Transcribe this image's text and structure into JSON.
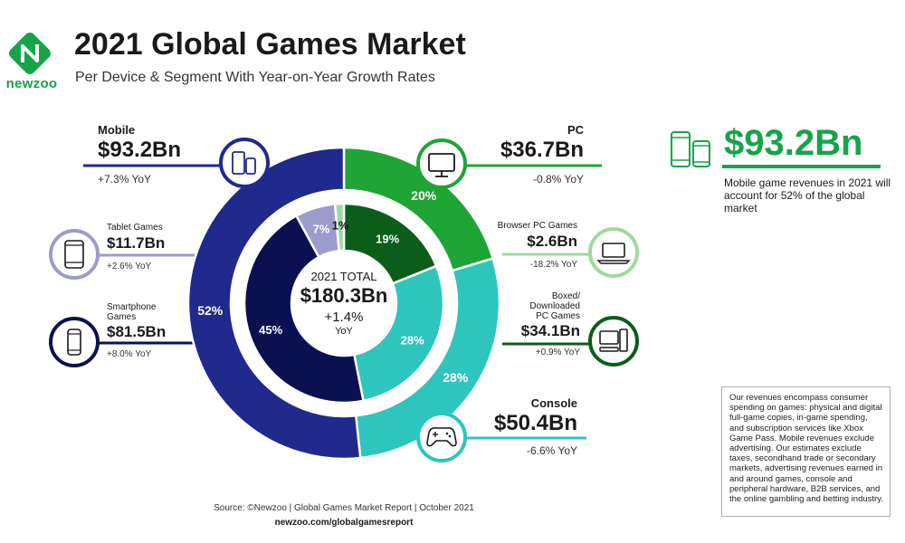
{
  "brand": {
    "name": "newzoo",
    "color": "#16a34a"
  },
  "header": {
    "title": "2021 Global Games Market",
    "subtitle": "Per Device & Segment With Year-on-Year Growth Rates"
  },
  "colors": {
    "mobile": "#1f2a8c",
    "tablet": "#9c9ccc",
    "smartphone": "#0b1050",
    "pc": "#1fa535",
    "browser_pc": "#a0d9a0",
    "boxed_pc": "#0b5e1a",
    "console": "#2ec5bd",
    "divider": "#ffffff"
  },
  "chart_data": {
    "type": "pie",
    "total": {
      "label": "2021 TOTAL",
      "value": "$180.3Bn",
      "growth": "+1.4%",
      "growth_unit": "YoY"
    },
    "outer_ring": [
      {
        "name": "Mobile",
        "revenue_bn": 93.2,
        "label": "52%"
      },
      {
        "name": "PC",
        "revenue_bn": 36.7,
        "label": "20%"
      },
      {
        "name": "Console",
        "revenue_bn": 50.4,
        "label": "28%"
      }
    ],
    "inner_ring": [
      {
        "name": "Smartphone Games",
        "revenue_bn": 81.5,
        "label": "45%"
      },
      {
        "name": "Tablet Games",
        "revenue_bn": 11.7,
        "label": "7%"
      },
      {
        "name": "Browser PC Games",
        "revenue_bn": 2.6,
        "label": "1%"
      },
      {
        "name": "Boxed/ Downloaded PC Games",
        "revenue_bn": 34.1,
        "label": "19%"
      },
      {
        "name": "Console",
        "revenue_bn": 50.4,
        "label": "28%"
      }
    ]
  },
  "segments": {
    "mobile": {
      "label": "Mobile",
      "value": "$93.2Bn",
      "yoy": "+7.3% YoY",
      "icon": "mobile-devices-icon"
    },
    "tablet": {
      "label": "Tablet Games",
      "value": "$11.7Bn",
      "yoy": "+2.6% YoY",
      "icon": "tablet-icon"
    },
    "smartphone": {
      "label1": "Smartphone",
      "label2": "Games",
      "value": "$81.5Bn",
      "yoy": "+8.0% YoY",
      "icon": "smartphone-icon"
    },
    "pc": {
      "label": "PC",
      "value": "$36.7Bn",
      "yoy": "-0.8% YoY",
      "icon": "monitor-icon"
    },
    "browser_pc": {
      "label": "Browser PC Games",
      "value": "$2.6Bn",
      "yoy": "-18.2% YoY",
      "icon": "laptop-icon"
    },
    "boxed_pc": {
      "label1": "Boxed/",
      "label2": "Downloaded",
      "label3": "PC Games",
      "value": "$34.1Bn",
      "yoy": "+0.9% YoY",
      "icon": "desktop-tower-icon"
    },
    "console": {
      "label": "Console",
      "value": "$50.4Bn",
      "yoy": "-6.6% YoY",
      "icon": "gamepad-icon"
    }
  },
  "highlight": {
    "value": "$93.2Bn",
    "text": "Mobile game revenues in 2021 will account for 52% of the global market",
    "icon": "mobile-devices-icon"
  },
  "note": "Our revenues encompass consumer spending on games: physical and digital full-game copies, in-game spending, and subscription services like Xbox Game Pass. Mobile revenues exclude advertising. Our estimates exclude taxes, secondhand trade or secondary markets, advertising revenues earned in and around games, console and peripheral hardware, B2B services, and the online gambling and betting industry.",
  "footer": {
    "source": "Source: ©Newzoo | Global Games Market Report | October 2021",
    "url": "newzoo.com/globalgamesreport"
  }
}
